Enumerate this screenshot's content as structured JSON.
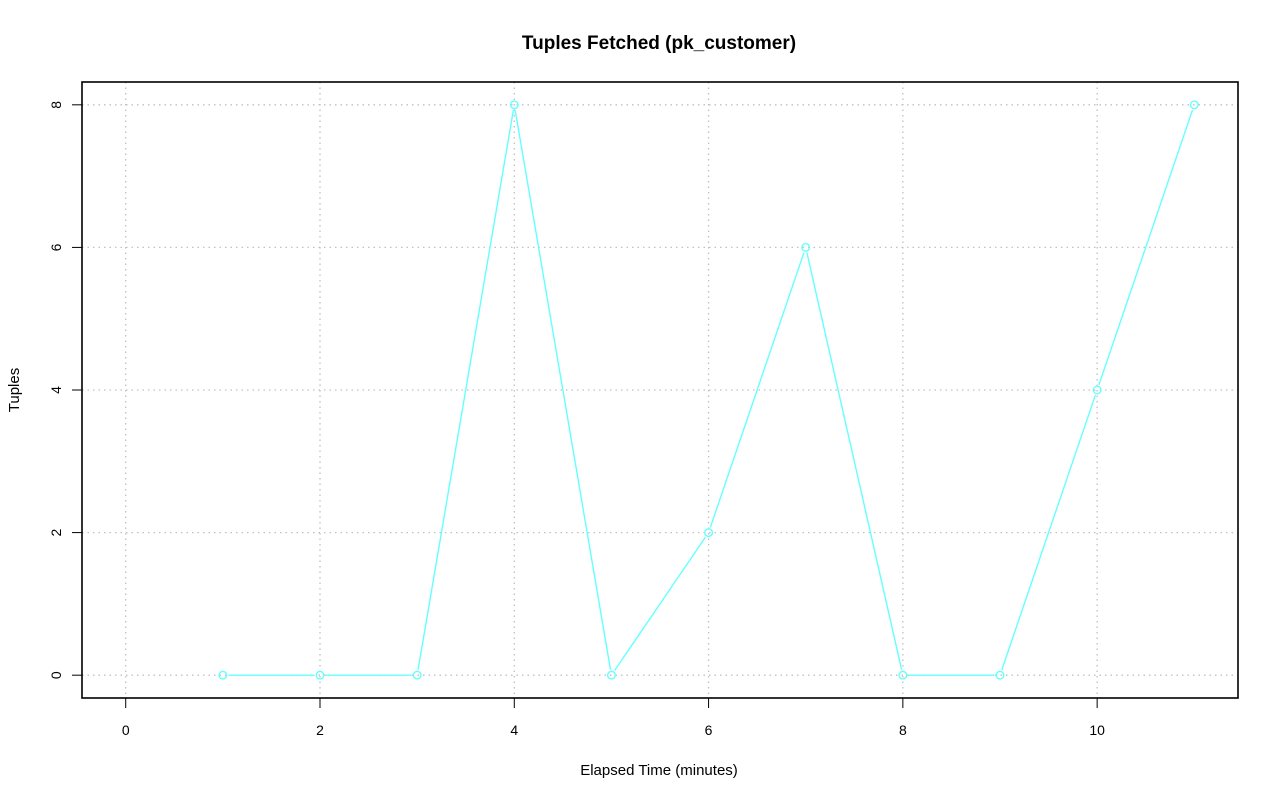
{
  "chart_data": {
    "type": "line",
    "title": "Tuples Fetched (pk_customer)",
    "xlabel": "Elapsed Time (minutes)",
    "ylabel": "Tuples",
    "xlim": [
      -0.45,
      11.45
    ],
    "ylim": [
      -0.32,
      8.32
    ],
    "x_ticks": [
      0,
      2,
      4,
      6,
      8,
      10
    ],
    "y_ticks": [
      0,
      2,
      4,
      6,
      8
    ],
    "x_tick_labels": [
      "0",
      "2",
      "4",
      "6",
      "8",
      "10"
    ],
    "y_tick_labels": [
      "0",
      "2",
      "4",
      "6",
      "8"
    ],
    "grid": true,
    "grid_style": "dotted",
    "series": [
      {
        "color": "#66ffff",
        "marker": "open-circle",
        "x": [
          1,
          2,
          3,
          4,
          5,
          6,
          7,
          8,
          9,
          10,
          11
        ],
        "y": [
          0,
          0,
          0,
          8,
          0,
          2,
          6,
          0,
          0,
          4,
          8
        ]
      }
    ]
  }
}
